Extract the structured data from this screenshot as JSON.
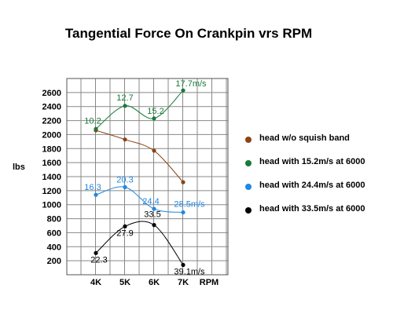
{
  "chart_data": {
    "type": "line",
    "title": "Tangential Force On Crankpin vrs RPM",
    "ylabel": "lbs",
    "xlabel": "RPM",
    "categories": [
      "4K",
      "5K",
      "6K",
      "7K"
    ],
    "ylim": [
      0,
      2800
    ],
    "yticks": [
      200,
      400,
      600,
      800,
      1000,
      1200,
      1400,
      1600,
      1800,
      2000,
      2200,
      2400,
      2600
    ],
    "grid": true,
    "legend_position": "right",
    "series": [
      {
        "name": "head w/o squish band",
        "color": "#8b4513",
        "values": [
          2060,
          1930,
          1770,
          1320
        ],
        "labels": [
          "",
          "",
          "",
          ""
        ]
      },
      {
        "name": "head with 15.2m/s at 6000",
        "color": "#1a7a3a",
        "values": [
          2080,
          2410,
          2230,
          2630
        ],
        "labels": [
          "10.2",
          "12.7",
          "15.2",
          "17.7m/s"
        ]
      },
      {
        "name": "head with 24.4m/s at 6000",
        "color": "#1e88e5",
        "values": [
          1140,
          1250,
          940,
          890
        ],
        "labels": [
          "16.3",
          "20.3",
          "24.4",
          "28.5m/s"
        ]
      },
      {
        "name": "head with 33.5m/s at 6000",
        "color": "#000000",
        "values": [
          310,
          690,
          710,
          140
        ],
        "labels": [
          "22.3",
          "27.9",
          "33.5",
          "39.1m/s"
        ]
      }
    ]
  }
}
